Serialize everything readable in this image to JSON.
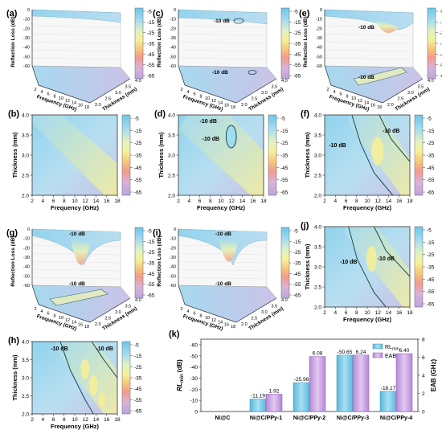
{
  "colorbar": {
    "ticks": [
      "-5",
      "-15",
      "-25",
      "-35",
      "-45",
      "-55",
      "-65"
    ],
    "colors": [
      "#6cc6ea",
      "#a9dcef",
      "#dff1c3",
      "#f6f19a",
      "#f6c77b",
      "#f29b8c",
      "#d9b2d9",
      "#b8a6dc"
    ]
  },
  "axes_text": {
    "frequency": "Frequency (GHz)",
    "thickness": "Thickness (mm)",
    "reflection": "Reflection Loss (dB)",
    "contour": "-10 dB",
    "freq_ticks": [
      "2",
      "4",
      "6",
      "8",
      "10",
      "12",
      "14",
      "16",
      "18"
    ],
    "thick_ticks": [
      "2.0",
      "2.5",
      "3.0",
      "3.5",
      "4.0"
    ],
    "rl_ticks": [
      "0",
      "-10",
      "-20",
      "-30",
      "-40",
      "-50",
      "-60"
    ]
  },
  "panels": {
    "a": "(a)",
    "b": "(b)",
    "c": "(c)",
    "d": "(d)",
    "e": "(e)",
    "f": "(f)",
    "g": "(g)",
    "h": "(h)",
    "i": "(i)",
    "j": "(j)",
    "k": "(k)"
  },
  "chart_data": [
    {
      "type": "bar",
      "panel": "k",
      "categories": [
        "Ni@C",
        "Ni@C/PPy-1",
        "Ni@C/PPy-2",
        "Ni@C/PPy-3",
        "Ni@C/PPy-4"
      ],
      "series": [
        {
          "name": "RLmin",
          "values": [
            null,
            -11.19,
            -25.96,
            -50.65,
            -18.17
          ],
          "labels": [
            "",
            "-11.19",
            "-25.96",
            "-50.65",
            "-18.17"
          ],
          "color": "#7fcfe8"
        },
        {
          "name": "EAB",
          "values": [
            null,
            1.92,
            6.08,
            6.24,
            6.4
          ],
          "labels": [
            "",
            "1.92",
            "6.08",
            "6.24",
            "6.40"
          ],
          "color": "#c9a3e0"
        }
      ],
      "ylabel": "RLmin (dB)",
      "ylabel_display": {
        "main": "RL",
        "sub": "min",
        "unit": " (dB)"
      },
      "y2label": "EAB (GHz)",
      "ylim": [
        0,
        -65
      ],
      "yticks": [
        "0",
        "-10",
        "-20",
        "-30",
        "-40",
        "-50",
        "-60"
      ],
      "y2lim": [
        0,
        8
      ],
      "y2ticks": [
        "0",
        "2",
        "4",
        "6",
        "8"
      ],
      "legend": "top-right"
    }
  ]
}
